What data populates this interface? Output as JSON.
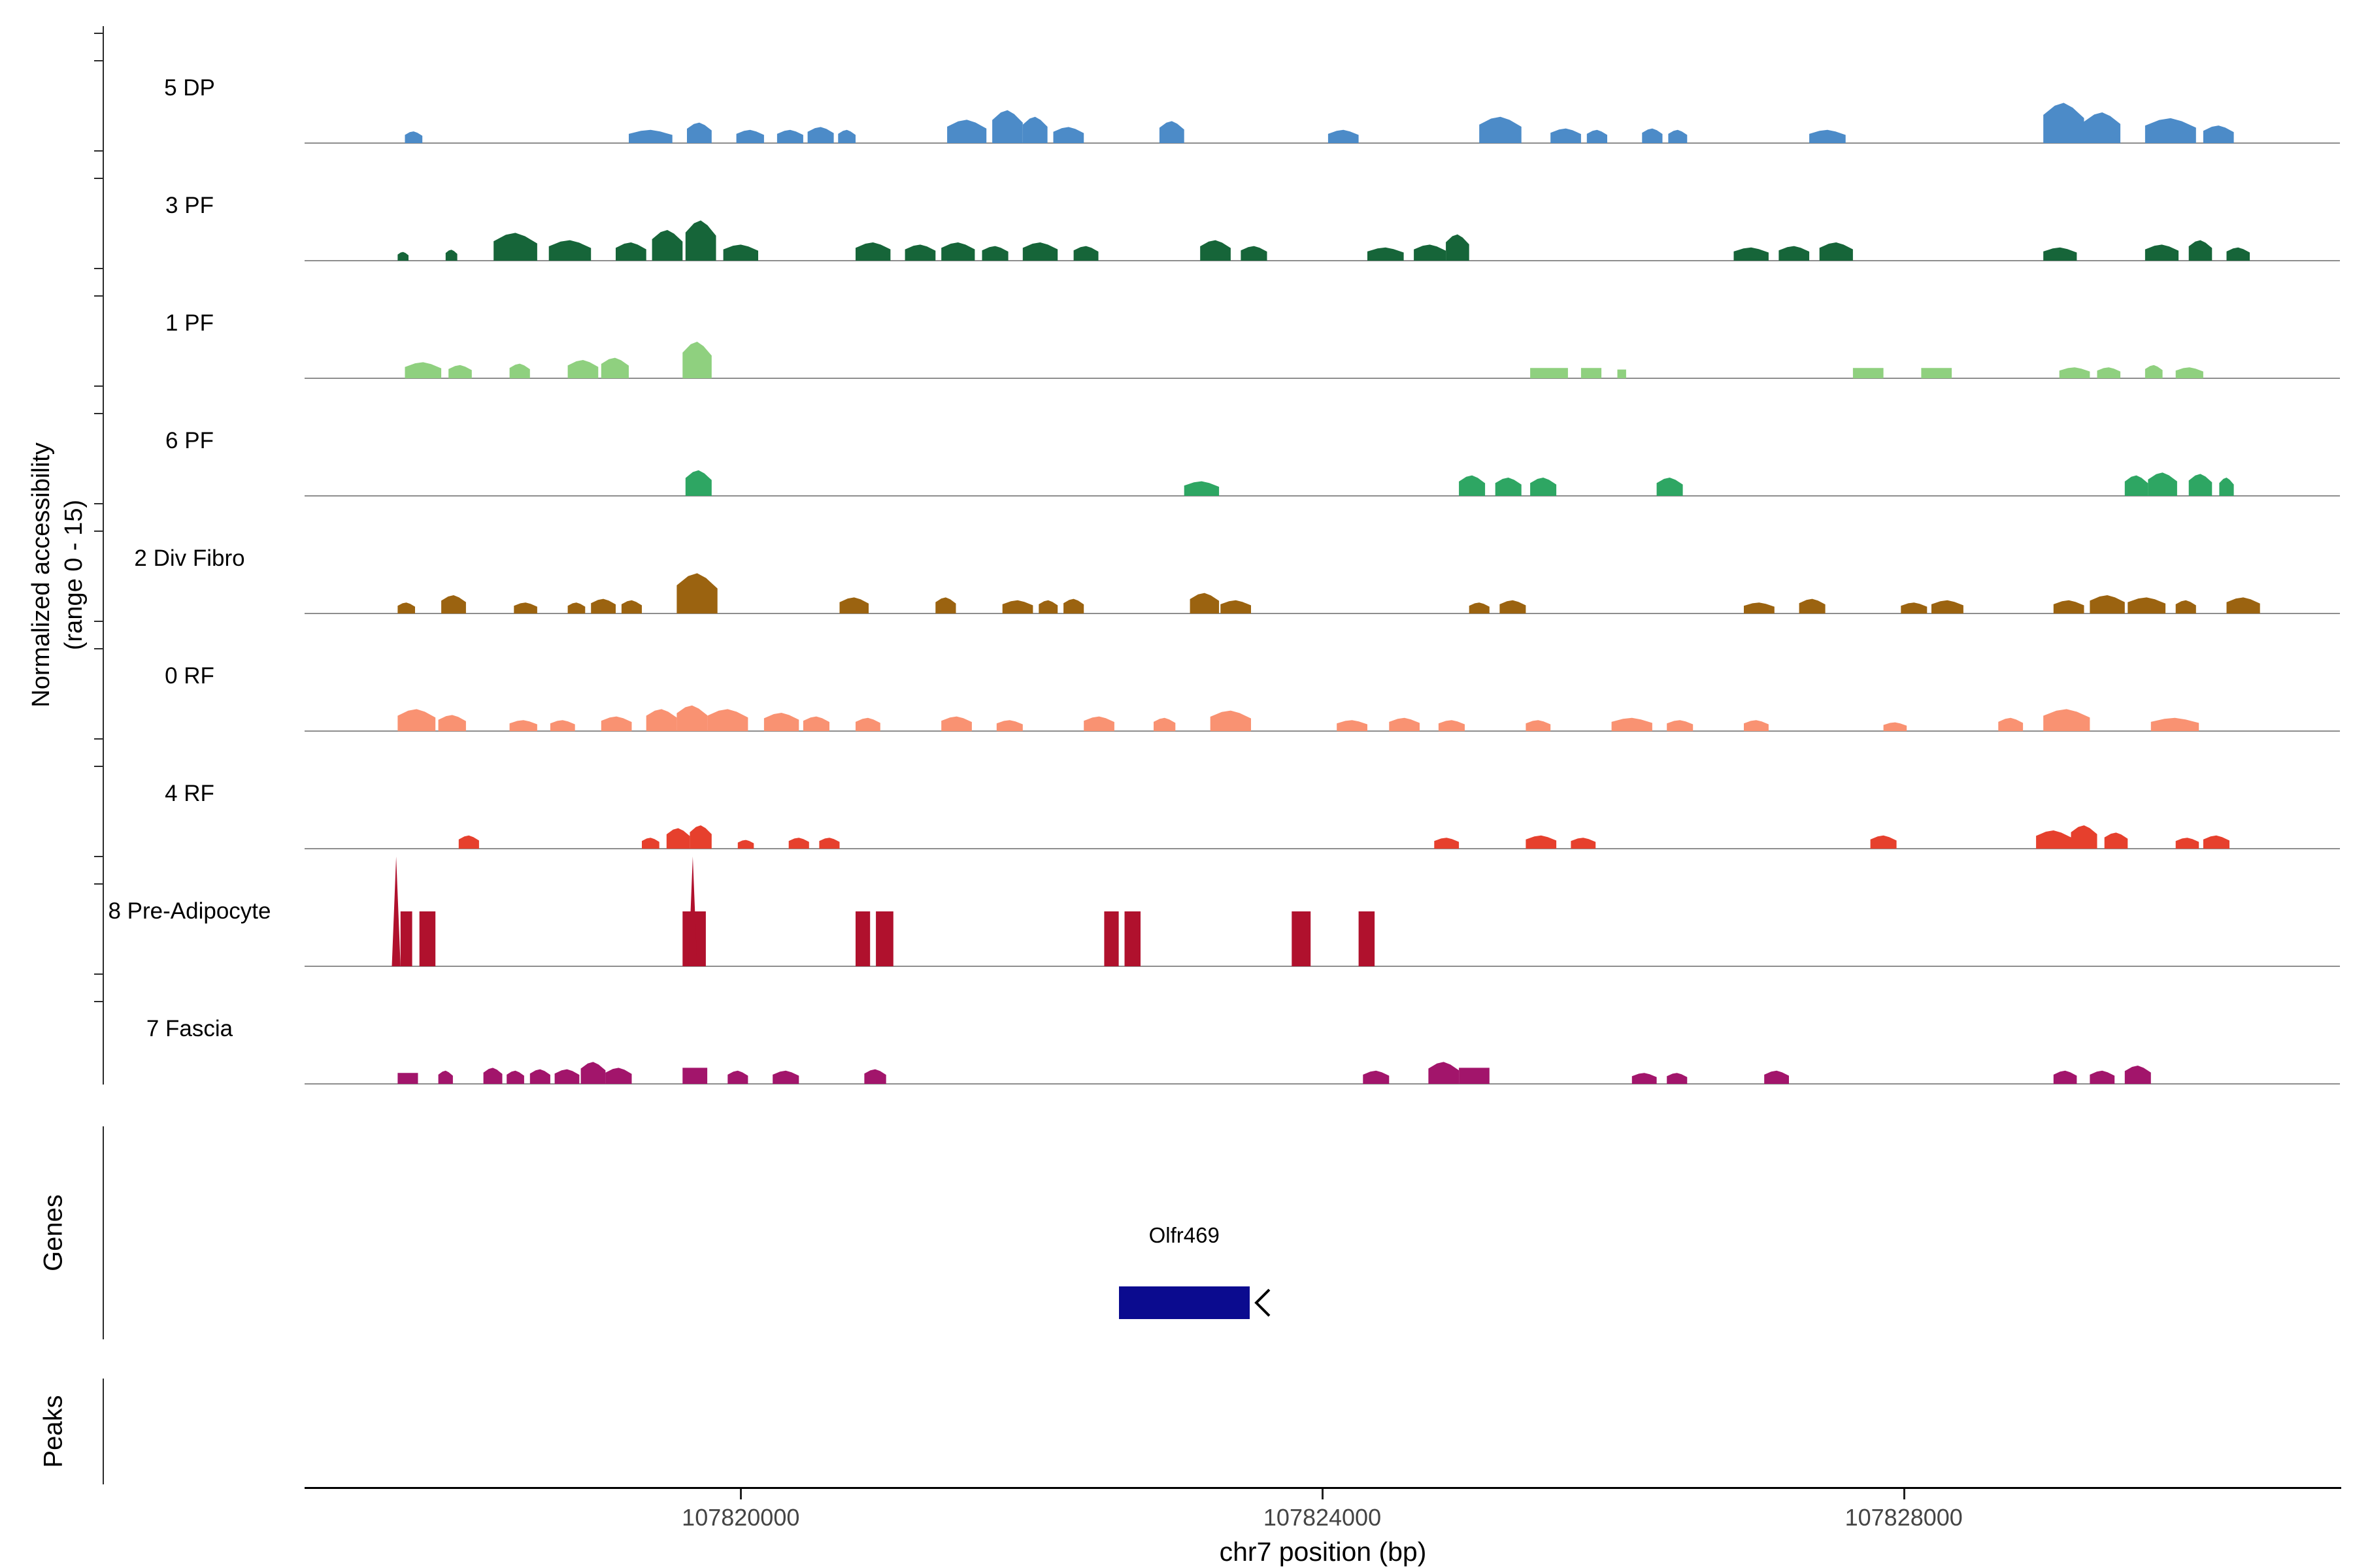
{
  "y_axis": {
    "label_line1": "Normalized accessibility",
    "label_line2": "(range 0 - 15)"
  },
  "sections": {
    "genes": "Genes",
    "peaks": "Peaks"
  },
  "x_axis": {
    "title": "chr7 position (bp)"
  },
  "chart_data": {
    "type": "area",
    "subtype": "genome-accessibility-coverage-tracks",
    "title": "",
    "xlabel": "chr7 position (bp)",
    "ylabel": "Normalized accessibility (range 0 - 15)",
    "y_range_per_track": [
      0,
      15
    ],
    "x_domain_bp": [
      107817000,
      107831000
    ],
    "x_ticks": [
      107820000,
      107824000,
      107828000
    ],
    "grid": false,
    "segment_format": "[start_bp, end_bp, height_0_to_15, shape p=peak r=rect t=spike]",
    "tracks": [
      {
        "label": "5 DP",
        "color": "#4C8BC8",
        "segments": [
          [
            107817690,
            107817810,
            1.6
          ],
          [
            107819230,
            107819530,
            1.8
          ],
          [
            107819630,
            107819800,
            2.8
          ],
          [
            107819970,
            107820160,
            1.8
          ],
          [
            107820250,
            107820430,
            1.8
          ],
          [
            107820460,
            107820640,
            2.2
          ],
          [
            107820670,
            107820790,
            1.8
          ],
          [
            107821420,
            107821690,
            3.2
          ],
          [
            107821730,
            107821940,
            4.5
          ],
          [
            107821940,
            107822110,
            3.6
          ],
          [
            107822150,
            107822360,
            2.2
          ],
          [
            107822880,
            107823050,
            3.0
          ],
          [
            107824040,
            107824250,
            1.8
          ],
          [
            107825080,
            107825370,
            3.6
          ],
          [
            107825570,
            107825780,
            2.0
          ],
          [
            107825820,
            107825960,
            1.8
          ],
          [
            107826200,
            107826340,
            2.0
          ],
          [
            107826380,
            107826510,
            1.8
          ],
          [
            107827350,
            107827600,
            1.8
          ],
          [
            107828960,
            107829240,
            5.5
          ],
          [
            107829240,
            107829490,
            4.2
          ],
          [
            107829660,
            107830010,
            3.4
          ],
          [
            107830060,
            107830270,
            2.4
          ]
        ]
      },
      {
        "label": "3 PF",
        "color": "#166539",
        "segments": [
          [
            107817640,
            107817715,
            1.2
          ],
          [
            107817970,
            107818050,
            1.5
          ],
          [
            107818300,
            107818600,
            3.8
          ],
          [
            107818680,
            107818970,
            2.8
          ],
          [
            107819140,
            107819350,
            2.5
          ],
          [
            107819390,
            107819600,
            4.2
          ],
          [
            107819620,
            107819830,
            5.5
          ],
          [
            107819880,
            107820120,
            2.2
          ],
          [
            107820790,
            107821030,
            2.5
          ],
          [
            107821130,
            107821340,
            2.2
          ],
          [
            107821380,
            107821610,
            2.5
          ],
          [
            107821660,
            107821840,
            2.0
          ],
          [
            107821940,
            107822180,
            2.5
          ],
          [
            107822290,
            107822460,
            2.0
          ],
          [
            107823160,
            107823370,
            2.8
          ],
          [
            107823440,
            107823620,
            2.0
          ],
          [
            107824310,
            107824560,
            1.8
          ],
          [
            107824630,
            107824850,
            2.2
          ],
          [
            107824850,
            107825010,
            3.6
          ],
          [
            107826830,
            107827070,
            1.8
          ],
          [
            107827140,
            107827350,
            2.0
          ],
          [
            107827420,
            107827650,
            2.5
          ],
          [
            107828960,
            107829190,
            1.8
          ],
          [
            107829660,
            107829890,
            2.2
          ],
          [
            107829960,
            107830120,
            2.8
          ],
          [
            107830220,
            107830380,
            1.8
          ]
        ]
      },
      {
        "label": "1 PF",
        "color": "#8FD07F",
        "segments": [
          [
            107817690,
            107817940,
            2.2
          ],
          [
            107817990,
            107818150,
            1.8
          ],
          [
            107818410,
            107818550,
            2.0
          ],
          [
            107818810,
            107819020,
            2.5
          ],
          [
            107819040,
            107819230,
            2.8
          ],
          [
            107819600,
            107819800,
            5.0
          ],
          [
            107825430,
            107825690,
            1.4,
            "r"
          ],
          [
            107825780,
            107825920,
            1.4,
            "r"
          ],
          [
            107826030,
            107826090,
            1.2,
            "r"
          ],
          [
            107827650,
            107827860,
            1.4,
            "r"
          ],
          [
            107828120,
            107828330,
            1.4,
            "r"
          ],
          [
            107829070,
            107829280,
            1.5
          ],
          [
            107829330,
            107829490,
            1.5
          ],
          [
            107829660,
            107829780,
            1.8
          ],
          [
            107829870,
            107830060,
            1.5
          ]
        ]
      },
      {
        "label": "6 PF",
        "color": "#2EA663",
        "segments": [
          [
            107819620,
            107819800,
            3.5
          ],
          [
            107823050,
            107823290,
            2.0
          ],
          [
            107824940,
            107825120,
            2.8
          ],
          [
            107825190,
            107825370,
            2.5
          ],
          [
            107825430,
            107825610,
            2.5
          ],
          [
            107826300,
            107826480,
            2.5
          ],
          [
            107829520,
            107829680,
            2.8
          ],
          [
            107829680,
            107829880,
            3.2
          ],
          [
            107829960,
            107830120,
            3.0
          ],
          [
            107830170,
            107830270,
            2.5
          ]
        ]
      },
      {
        "label": "2 Div Fibro",
        "color": "#9B6310",
        "segments": [
          [
            107817640,
            107817760,
            1.5
          ],
          [
            107817940,
            107818110,
            2.5
          ],
          [
            107818440,
            107818600,
            1.5
          ],
          [
            107818810,
            107818930,
            1.5
          ],
          [
            107818970,
            107819140,
            2.0
          ],
          [
            107819180,
            107819320,
            1.8
          ],
          [
            107819560,
            107819840,
            5.5
          ],
          [
            107820680,
            107820880,
            2.2
          ],
          [
            107821340,
            107821480,
            2.2
          ],
          [
            107821800,
            107822010,
            1.8
          ],
          [
            107822050,
            107822180,
            1.8
          ],
          [
            107822220,
            107822360,
            2.0
          ],
          [
            107823090,
            107823290,
            2.8
          ],
          [
            107823300,
            107823510,
            1.8
          ],
          [
            107825010,
            107825150,
            1.5
          ],
          [
            107825220,
            107825400,
            1.8
          ],
          [
            107826900,
            107827110,
            1.5
          ],
          [
            107827280,
            107827460,
            2.0
          ],
          [
            107827980,
            107828160,
            1.5
          ],
          [
            107828190,
            107828410,
            1.8
          ],
          [
            107829030,
            107829240,
            1.8
          ],
          [
            107829280,
            107829520,
            2.5
          ],
          [
            107829540,
            107829800,
            2.2
          ],
          [
            107829870,
            107830010,
            1.8
          ],
          [
            107830220,
            107830450,
            2.2
          ]
        ]
      },
      {
        "label": "0 RF",
        "color": "#F99272",
        "segments": [
          [
            107817640,
            107817900,
            3.0
          ],
          [
            107817920,
            107818110,
            2.2
          ],
          [
            107818410,
            107818600,
            1.5
          ],
          [
            107818690,
            107818860,
            1.5
          ],
          [
            107819040,
            107819250,
            2.0
          ],
          [
            107819350,
            107819560,
            3.0
          ],
          [
            107819560,
            107819770,
            3.5
          ],
          [
            107819770,
            107820050,
            3.0
          ],
          [
            107820160,
            107820400,
            2.5
          ],
          [
            107820430,
            107820610,
            2.0
          ],
          [
            107820790,
            107820960,
            1.8
          ],
          [
            107821380,
            107821590,
            2.0
          ],
          [
            107821760,
            107821940,
            1.5
          ],
          [
            107822360,
            107822570,
            2.0
          ],
          [
            107822840,
            107822990,
            1.8
          ],
          [
            107823230,
            107823510,
            2.8
          ],
          [
            107824100,
            107824310,
            1.5
          ],
          [
            107824460,
            107824670,
            1.8
          ],
          [
            107824800,
            107824980,
            1.5
          ],
          [
            107825400,
            107825570,
            1.5
          ],
          [
            107825990,
            107826270,
            1.8
          ],
          [
            107826370,
            107826550,
            1.5
          ],
          [
            107826900,
            107827070,
            1.5
          ],
          [
            107827860,
            107828020,
            1.2
          ],
          [
            107828650,
            107828820,
            1.8
          ],
          [
            107828960,
            107829280,
            3.0
          ],
          [
            107829700,
            107830030,
            1.8
          ]
        ]
      },
      {
        "label": "4 RF",
        "color": "#E6402D",
        "segments": [
          [
            107818060,
            107818200,
            1.8
          ],
          [
            107819320,
            107819440,
            1.5
          ],
          [
            107819490,
            107819650,
            2.8
          ],
          [
            107819650,
            107819800,
            3.2
          ],
          [
            107819980,
            107820090,
            1.2
          ],
          [
            107820330,
            107820470,
            1.5
          ],
          [
            107820540,
            107820680,
            1.5
          ],
          [
            107824770,
            107824940,
            1.5
          ],
          [
            107825400,
            107825610,
            1.8
          ],
          [
            107825710,
            107825880,
            1.5
          ],
          [
            107827770,
            107827950,
            1.8
          ],
          [
            107828910,
            107829150,
            2.5
          ],
          [
            107829150,
            107829330,
            3.2
          ],
          [
            107829380,
            107829540,
            2.2
          ],
          [
            107829870,
            107830030,
            1.5
          ],
          [
            107830060,
            107830240,
            1.8
          ]
        ]
      },
      {
        "label": "8 Pre-Adipocyte",
        "color": "#B0112D",
        "segments": [
          [
            107817600,
            107817660,
            15,
            "t"
          ],
          [
            107817660,
            107817740,
            7.5,
            "r"
          ],
          [
            107817790,
            107817900,
            7.5,
            "r"
          ],
          [
            107819600,
            107819760,
            7.5,
            "r"
          ],
          [
            107819640,
            107819700,
            15,
            "t"
          ],
          [
            107820790,
            107820890,
            7.5,
            "r"
          ],
          [
            107820930,
            107821050,
            7.5,
            "r"
          ],
          [
            107822500,
            107822600,
            7.5,
            "r"
          ],
          [
            107822640,
            107822750,
            7.5,
            "r"
          ],
          [
            107823790,
            107823920,
            7.5,
            "r"
          ],
          [
            107824250,
            107824360,
            7.5,
            "r"
          ]
        ]
      },
      {
        "label": "7 Fascia",
        "color": "#A2156B",
        "segments": [
          [
            107817640,
            107817780,
            1.5,
            "r"
          ],
          [
            107817920,
            107818020,
            1.8
          ],
          [
            107818230,
            107818360,
            2.2
          ],
          [
            107818390,
            107818510,
            1.8
          ],
          [
            107818550,
            107818690,
            2.0
          ],
          [
            107818720,
            107818890,
            2.0
          ],
          [
            107818900,
            107819070,
            3.0
          ],
          [
            107819070,
            107819250,
            2.2
          ],
          [
            107819600,
            107819770,
            2.2,
            "r"
          ],
          [
            107819910,
            107820050,
            1.8
          ],
          [
            107820220,
            107820400,
            1.8
          ],
          [
            107820850,
            107821000,
            2.0
          ],
          [
            107824280,
            107824460,
            1.8
          ],
          [
            107824730,
            107824940,
            3.0
          ],
          [
            107824940,
            107825150,
            2.2,
            "r"
          ],
          [
            107826130,
            107826300,
            1.5
          ],
          [
            107826370,
            107826510,
            1.5
          ],
          [
            107827040,
            107827210,
            1.8
          ],
          [
            107829030,
            107829190,
            1.8
          ],
          [
            107829280,
            107829450,
            1.8
          ],
          [
            107829520,
            107829700,
            2.5
          ]
        ]
      }
    ],
    "gene_track": {
      "label": "Genes",
      "genes": [
        {
          "name": "Olfr469",
          "start_bp": 107822600,
          "end_bp": 107823500,
          "strand": "-",
          "color": "#0B0B8F"
        }
      ]
    },
    "peaks_track": {
      "label": "Peaks",
      "peaks": []
    }
  }
}
